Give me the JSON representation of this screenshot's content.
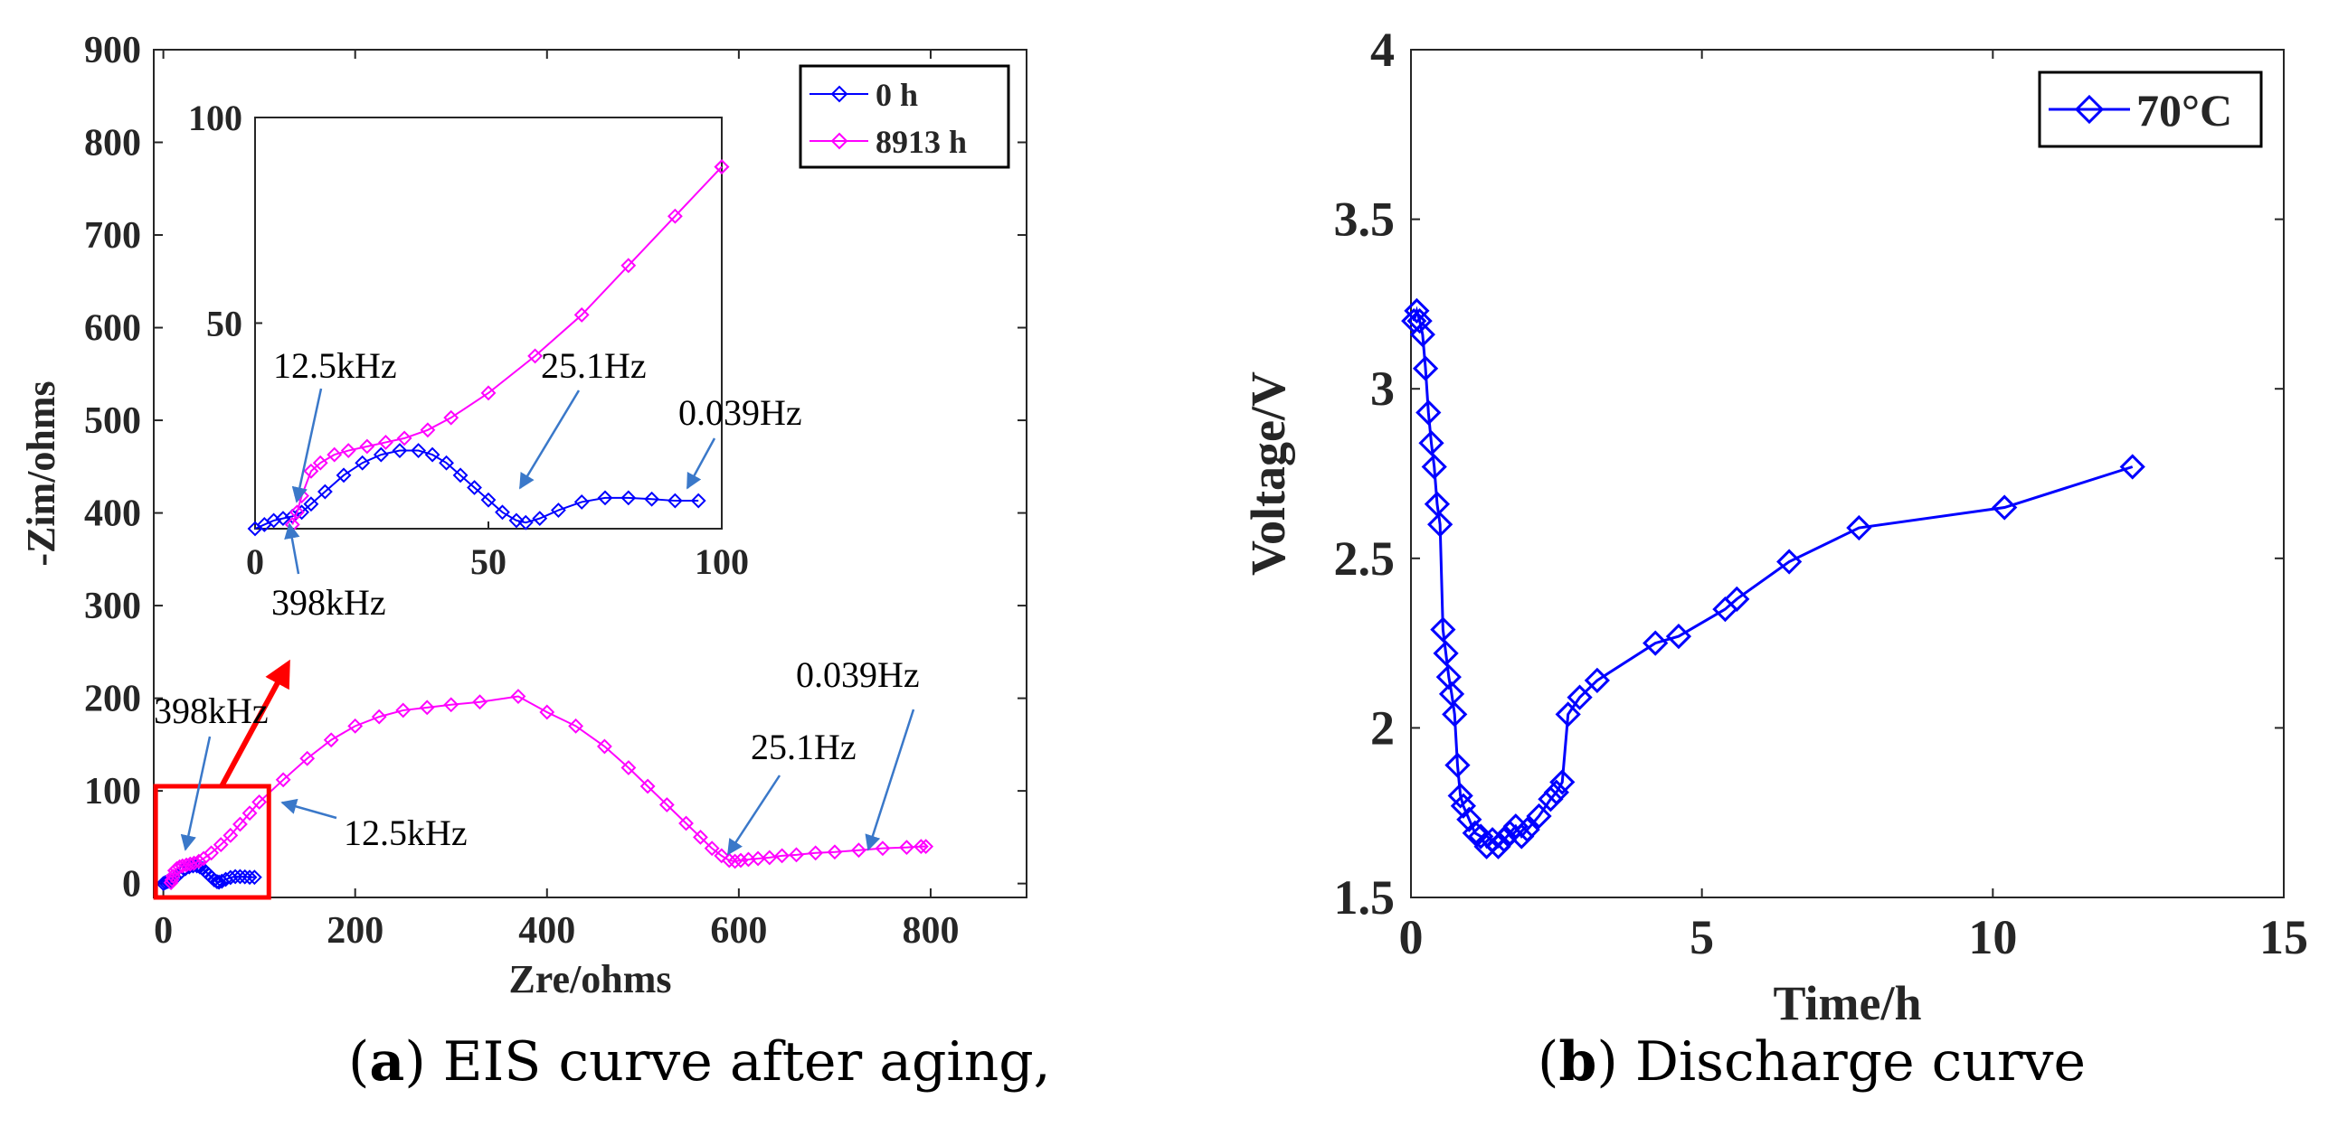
{
  "caption_a": {
    "letter": "a",
    "text": " EIS curve after aging,"
  },
  "caption_b": {
    "letter": "b",
    "text": " Discharge curve"
  },
  "chart_data": [
    {
      "type": "line",
      "xlabel": "Zre/ohms",
      "ylabel": "-Zim/ohms",
      "xlim": [
        -10,
        900
      ],
      "ylim": [
        -15,
        900
      ],
      "xticks": [
        0,
        200,
        400,
        600,
        800
      ],
      "yticks": [
        0,
        100,
        200,
        300,
        400,
        500,
        600,
        700,
        800,
        900
      ],
      "legend": {
        "placement": "top-right"
      },
      "colors": {
        "0 h": "#0000ff",
        "8913 h": "#ff00ff",
        "zoom_box": "#ff0000",
        "arrows": "#3a78c9"
      },
      "series": [
        {
          "name": "0 h",
          "x": [
            0,
            2,
            4,
            6,
            8,
            10,
            12,
            15,
            19,
            23,
            27,
            31,
            35,
            38,
            41,
            44,
            47,
            50,
            53,
            56,
            58,
            61,
            65,
            70,
            75,
            80,
            85,
            90,
            95
          ],
          "y": [
            0,
            1,
            2,
            2.5,
            3,
            4,
            6,
            9,
            13,
            16,
            18,
            19,
            19,
            18,
            16,
            13,
            10,
            7,
            4,
            2,
            1.5,
            2.5,
            4.5,
            6.5,
            7.5,
            7.5,
            7.2,
            6.8,
            6.8
          ]
        },
        {
          "name": "8913 h",
          "x": [
            8,
            9,
            10,
            12,
            14,
            17,
            20,
            24,
            28,
            32,
            37,
            42,
            50,
            60,
            70,
            80,
            90,
            100,
            125,
            150,
            175,
            200,
            225,
            250,
            275,
            300,
            330,
            370,
            400,
            430,
            460,
            485,
            505,
            525,
            545,
            560,
            572,
            582,
            590,
            596,
            602,
            610,
            620,
            632,
            645,
            660,
            680,
            700,
            725,
            750,
            775,
            790,
            795
          ],
          "y": [
            1,
            4,
            8,
            14,
            16,
            18,
            19,
            20,
            21,
            22,
            24,
            27,
            33,
            42,
            52,
            64,
            76,
            88,
            112,
            135,
            155,
            170,
            180,
            187,
            190,
            193,
            196,
            202,
            185,
            170,
            148,
            125,
            105,
            85,
            65,
            50,
            38,
            30,
            25,
            24,
            25,
            26,
            27,
            28,
            30,
            31,
            33,
            34,
            36,
            38,
            39,
            40,
            40
          ]
        }
      ],
      "zoom_box": {
        "x": [
          -8,
          110
        ],
        "y": [
          -15,
          105
        ]
      },
      "annotations": [
        {
          "text": "398kHz",
          "x": 0,
          "y": 0
        },
        {
          "text": "12.5kHz",
          "x": 0,
          "y": 0
        },
        {
          "text": "25.1Hz",
          "x": 0,
          "y": 0
        },
        {
          "text": "0.039Hz",
          "x": 0,
          "y": 0
        }
      ],
      "inset": {
        "xlim": [
          0,
          100
        ],
        "ylim": [
          0,
          100
        ],
        "xticks": [
          0,
          50,
          100
        ],
        "yticks": [
          50,
          100
        ],
        "annotations": [
          {
            "text": "12.5kHz"
          },
          {
            "text": "25.1Hz"
          },
          {
            "text": "0.039Hz"
          },
          {
            "text": "398kHz"
          }
        ]
      }
    },
    {
      "type": "line",
      "xlabel": "Time/h",
      "ylabel": "Voltage/V",
      "xlim": [
        0,
        15
      ],
      "ylim": [
        1.5,
        4
      ],
      "xticks": [
        0,
        5,
        10,
        15
      ],
      "yticks": [
        1.5,
        2,
        2.5,
        3,
        3.5,
        4
      ],
      "legend": {
        "placement": "top-right"
      },
      "colors": {
        "70°C": "#0000ff"
      },
      "series": [
        {
          "name": "70°C",
          "x": [
            0.05,
            0.1,
            0.15,
            0.2,
            0.25,
            0.3,
            0.35,
            0.4,
            0.45,
            0.5,
            0.55,
            0.6,
            0.65,
            0.7,
            0.75,
            0.8,
            0.85,
            0.9,
            1.0,
            1.1,
            1.2,
            1.3,
            1.4,
            1.5,
            1.6,
            1.7,
            1.8,
            1.9,
            2.0,
            2.2,
            2.4,
            2.5,
            2.6,
            2.7,
            2.9,
            3.2,
            4.2,
            4.6,
            5.4,
            5.6,
            6.5,
            7.7,
            10.2,
            12.4
          ],
          "y": [
            3.2,
            3.23,
            3.2,
            3.16,
            3.06,
            2.93,
            2.84,
            2.77,
            2.66,
            2.6,
            2.29,
            2.22,
            2.15,
            2.1,
            2.04,
            1.89,
            1.8,
            1.77,
            1.73,
            1.69,
            1.68,
            1.65,
            1.67,
            1.65,
            1.67,
            1.69,
            1.71,
            1.68,
            1.7,
            1.74,
            1.79,
            1.81,
            1.84,
            2.04,
            2.09,
            2.14,
            2.25,
            2.27,
            2.35,
            2.38,
            2.49,
            2.59,
            2.65,
            2.77
          ]
        }
      ]
    }
  ]
}
